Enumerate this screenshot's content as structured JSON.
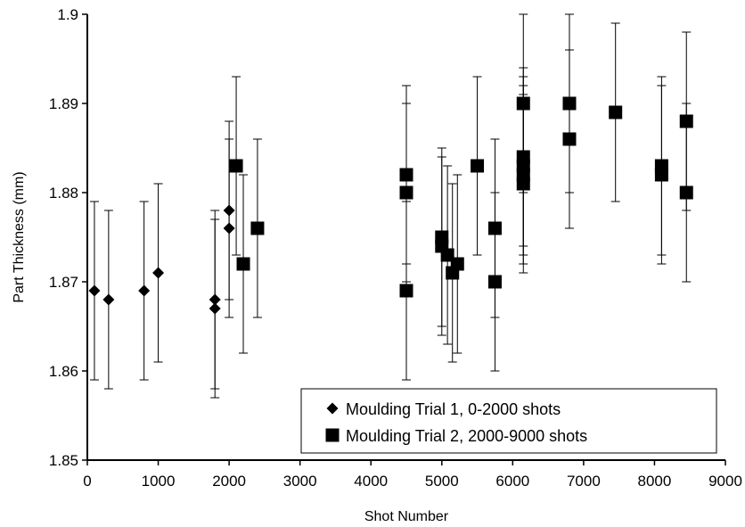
{
  "chart_data": {
    "type": "scatter",
    "xlabel": "Shot Number",
    "ylabel": "Part Thickness (mm)",
    "xlim": [
      0,
      9000
    ],
    "ylim": [
      1.85,
      1.9
    ],
    "x_ticks": [
      "0",
      "1000",
      "2000",
      "3000",
      "4000",
      "5000",
      "6000",
      "7000",
      "8000",
      "9000"
    ],
    "y_ticks": [
      "1.85",
      "1.86",
      "1.87",
      "1.88",
      "1.89",
      "1.9"
    ],
    "grid": false,
    "legend_position": "bottom-right",
    "series": [
      {
        "name": "Moulding Trial 1, 0-2000 shots",
        "marker": "diamond",
        "points": [
          {
            "x": 100,
            "y": 1.869,
            "err_low": 1.859,
            "err_high": 1.879
          },
          {
            "x": 300,
            "y": 1.868,
            "err_low": 1.858,
            "err_high": 1.878
          },
          {
            "x": 800,
            "y": 1.869,
            "err_low": 1.859,
            "err_high": 1.879
          },
          {
            "x": 1000,
            "y": 1.871,
            "err_low": 1.861,
            "err_high": 1.881
          },
          {
            "x": 1800,
            "y": 1.868,
            "err_low": 1.858,
            "err_high": 1.878
          },
          {
            "x": 1800,
            "y": 1.867,
            "err_low": 1.857,
            "err_high": 1.877
          },
          {
            "x": 2000,
            "y": 1.876,
            "err_low": 1.866,
            "err_high": 1.886
          },
          {
            "x": 2000,
            "y": 1.878,
            "err_low": 1.868,
            "err_high": 1.888
          }
        ]
      },
      {
        "name": "Moulding Trial 2, 2000-9000 shots",
        "marker": "square",
        "points": [
          {
            "x": 2100,
            "y": 1.883,
            "err_low": 1.873,
            "err_high": 1.893
          },
          {
            "x": 2200,
            "y": 1.872,
            "err_low": 1.862,
            "err_high": 1.882
          },
          {
            "x": 2400,
            "y": 1.876,
            "err_low": 1.866,
            "err_high": 1.886
          },
          {
            "x": 4500,
            "y": 1.882,
            "err_low": 1.872,
            "err_high": 1.892
          },
          {
            "x": 4500,
            "y": 1.88,
            "err_low": 1.87,
            "err_high": 1.89
          },
          {
            "x": 4500,
            "y": 1.869,
            "err_low": 1.859,
            "err_high": 1.879
          },
          {
            "x": 5000,
            "y": 1.875,
            "err_low": 1.865,
            "err_high": 1.885
          },
          {
            "x": 5000,
            "y": 1.874,
            "err_low": 1.864,
            "err_high": 1.884
          },
          {
            "x": 5080,
            "y": 1.873,
            "err_low": 1.863,
            "err_high": 1.883
          },
          {
            "x": 5150,
            "y": 1.871,
            "err_low": 1.861,
            "err_high": 1.881
          },
          {
            "x": 5220,
            "y": 1.872,
            "err_low": 1.862,
            "err_high": 1.882
          },
          {
            "x": 5500,
            "y": 1.883,
            "err_low": 1.873,
            "err_high": 1.893
          },
          {
            "x": 5750,
            "y": 1.876,
            "err_low": 1.866,
            "err_high": 1.886
          },
          {
            "x": 5750,
            "y": 1.87,
            "err_low": 1.86,
            "err_high": 1.88
          },
          {
            "x": 6150,
            "y": 1.89,
            "err_low": 1.88,
            "err_high": 1.9
          },
          {
            "x": 6150,
            "y": 1.884,
            "err_low": 1.874,
            "err_high": 1.894
          },
          {
            "x": 6150,
            "y": 1.883,
            "err_low": 1.873,
            "err_high": 1.893
          },
          {
            "x": 6150,
            "y": 1.882,
            "err_low": 1.872,
            "err_high": 1.892
          },
          {
            "x": 6150,
            "y": 1.881,
            "err_low": 1.871,
            "err_high": 1.891
          },
          {
            "x": 6800,
            "y": 1.89,
            "err_low": 1.88,
            "err_high": 1.9
          },
          {
            "x": 6800,
            "y": 1.886,
            "err_low": 1.876,
            "err_high": 1.896
          },
          {
            "x": 7450,
            "y": 1.889,
            "err_low": 1.879,
            "err_high": 1.899
          },
          {
            "x": 8100,
            "y": 1.883,
            "err_low": 1.873,
            "err_high": 1.893
          },
          {
            "x": 8100,
            "y": 1.882,
            "err_low": 1.872,
            "err_high": 1.892
          },
          {
            "x": 8450,
            "y": 1.888,
            "err_low": 1.878,
            "err_high": 1.898
          },
          {
            "x": 8450,
            "y": 1.88,
            "err_low": 1.87,
            "err_high": 1.89
          }
        ]
      }
    ]
  }
}
